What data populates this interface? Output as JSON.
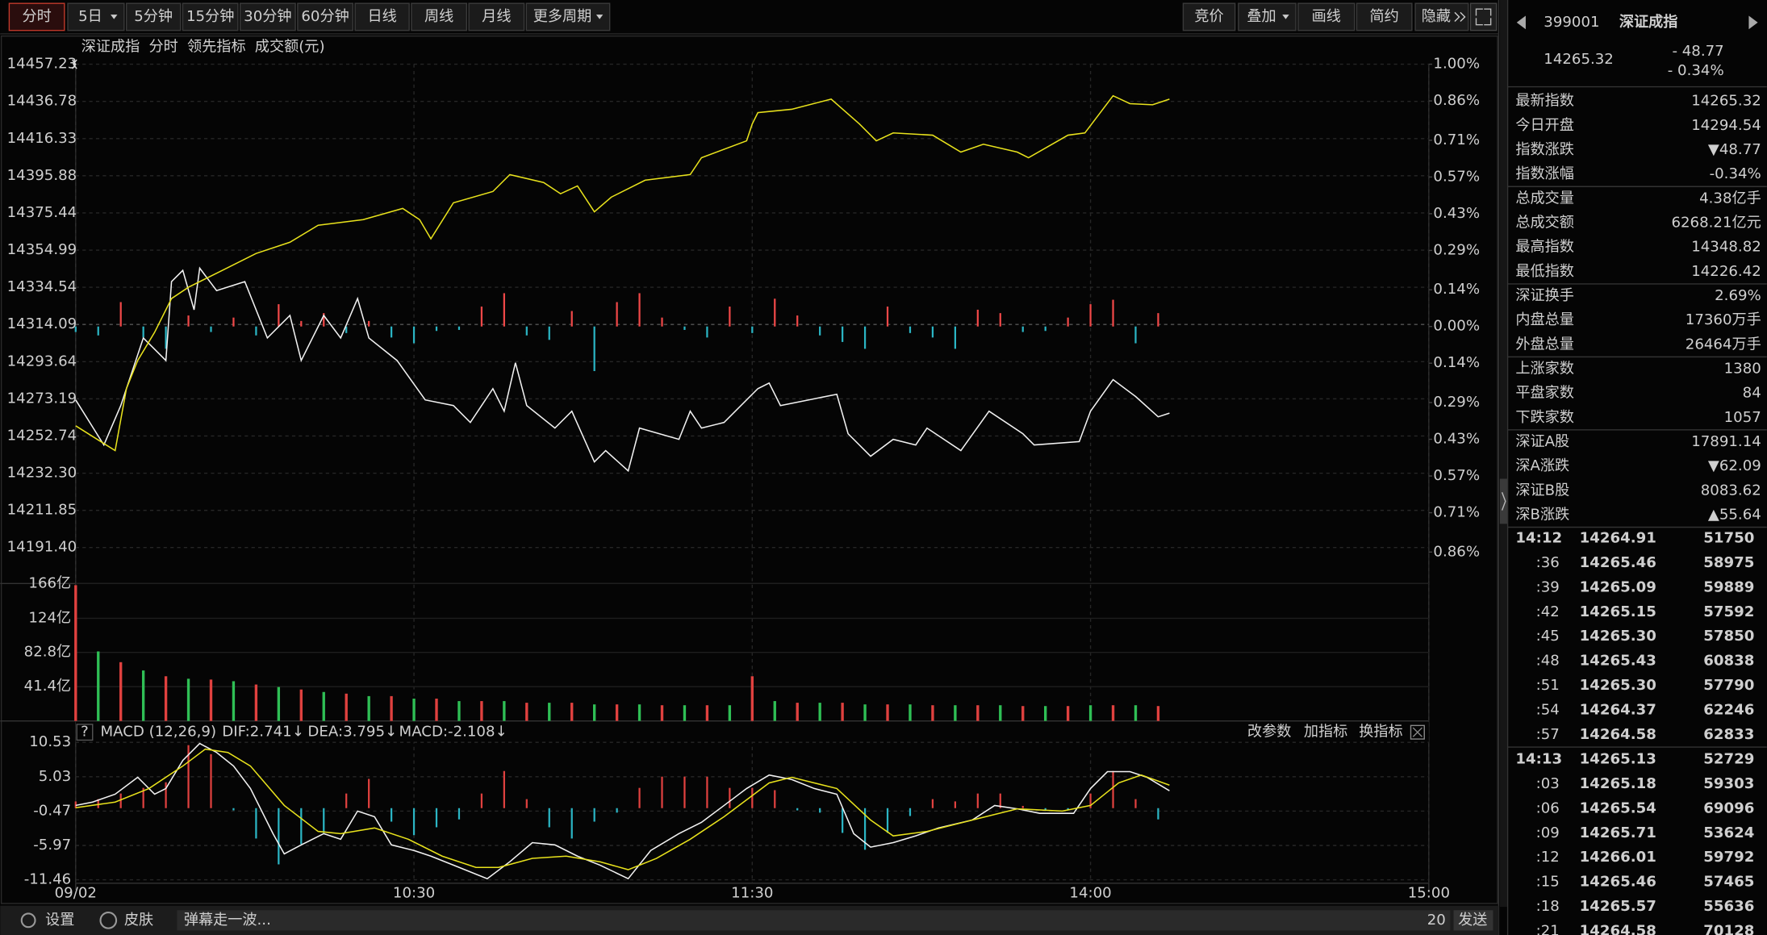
{
  "toolbar": {
    "periods": [
      "分时",
      "5日",
      "5分钟",
      "15分钟",
      "30分钟",
      "60分钟",
      "日线",
      "周线",
      "月线",
      "更多周期"
    ],
    "tools": [
      "竞价",
      "叠加",
      "画线",
      "简约",
      "隐藏"
    ]
  },
  "chart_data": [
    {
      "type": "line",
      "title": "深证成指",
      "xlim": [
        0,
        240
      ],
      "ylim": [
        14171.6,
        14457.23
      ],
      "yticks": [
        14457.23,
        14436.78,
        14416.33,
        14395.88,
        14375.44,
        14354.99,
        14334.54,
        14314.09,
        14293.64,
        14273.19,
        14252.74,
        {
          "value": 14232.3,
          "label": "14232.30"
        },
        14211.85,
        {
          "value": 14191.4,
          "label": "14191.40"
        }
      ],
      "y2lim": [
        -0.98,
        1.0
      ],
      "y2ticks": [
        {
          "value": 1.0,
          "label": "1.00%"
        },
        {
          "value": 0.86,
          "label": "0.86%"
        },
        {
          "value": 0.71,
          "label": "0.71%"
        },
        {
          "value": 0.57,
          "label": "0.57%"
        },
        {
          "value": 0.43,
          "label": "0.43%"
        },
        {
          "value": 0.29,
          "label": "0.29%"
        },
        {
          "value": 0.14,
          "label": "0.14%"
        },
        {
          "value": 0,
          "label": "0.00%"
        },
        {
          "value": -0.14,
          "label": "0.14%"
        },
        {
          "value": -0.29,
          "label": "0.29%"
        },
        {
          "value": -0.43,
          "label": "0.43%"
        },
        {
          "value": -0.57,
          "label": "0.57%"
        },
        {
          "value": -0.71,
          "label": "0.71%"
        },
        {
          "value": -0.86,
          "label": "0.86%"
        }
      ],
      "up_color": "#f04848",
      "down_color": "#2bb5c4",
      "grid": true,
      "series": [
        {
          "name": "分时",
          "color": "#f2f2f2",
          "x": [
            0,
            5,
            8,
            12,
            16,
            17,
            19,
            21,
            22,
            25,
            30,
            34,
            38,
            40,
            44,
            47,
            50,
            52,
            57,
            62,
            67,
            70,
            74,
            76,
            78,
            80,
            85,
            88,
            92,
            94,
            98,
            100,
            107,
            109,
            111,
            115,
            121,
            123,
            125,
            130,
            135,
            137,
            141,
            145,
            149,
            151,
            157,
            162,
            168,
            170,
            178,
            180,
            184,
            188,
            192,
            194
          ],
          "values": [
            14272.59,
            14247.81,
            14269.49,
            14306.67,
            14294.28,
            14337.65,
            14343.84,
            14322.16,
            14345.08,
            14332.69,
            14337.65,
            14306.67,
            14319.06,
            14294.28,
            14319.06,
            14306.67,
            14328.35,
            14306.67,
            14294.28,
            14272.59,
            14269.49,
            14260.2,
            14278.79,
            14266.39,
            14293.04,
            14269.49,
            14257.1,
            14266.39,
            14238.51,
            14244.71,
            14233.55,
            14257.1,
            14250.9,
            14266.39,
            14257.1,
            14260.2,
            14278.79,
            14281.88,
            14269.49,
            14272.59,
            14275.69,
            14254.0,
            14241.61,
            14250.9,
            14247.81,
            14257.1,
            14244.71,
            14266.39,
            14254.0,
            14247.81,
            14249.66,
            14266.39,
            14283.74,
            14274.45,
            14263.29,
            14265.32
          ]
        },
        {
          "name": "领先指标",
          "color": "#e8e21c",
          "x": [
            0,
            7,
            9,
            11,
            14,
            17,
            20,
            26,
            32,
            38,
            43,
            51,
            58,
            61,
            63,
            67,
            74,
            77,
            83,
            86,
            89,
            92,
            95,
            101,
            109,
            111,
            119,
            120,
            121,
            127,
            134,
            139,
            142,
            145,
            152,
            157,
            161,
            167,
            169,
            176,
            179,
            184,
            187,
            191,
            194
          ],
          "values": [
            14258.34,
            14244.71,
            14278.79,
            14294.28,
            14309.77,
            14328.35,
            14334.55,
            14343.84,
            14353.14,
            14359.33,
            14368.63,
            14371.73,
            14377.92,
            14371.73,
            14361.19,
            14381.02,
            14387.22,
            14396.51,
            14392.17,
            14385.98,
            14390.31,
            14376.06,
            14384.12,
            14393.41,
            14396.51,
            14405.8,
            14415.1,
            14424.39,
            14430.59,
            14432.45,
            14438.02,
            14424.39,
            14415.1,
            14419.43,
            14418.2,
            14408.9,
            14413.24,
            14408.9,
            14405.8,
            14418.2,
            14419.43,
            14439.88,
            14435.54,
            14434.92,
            14438.02
          ]
        }
      ],
      "bars": {
        "axis": "y2",
        "x": [
          0,
          4,
          8,
          12,
          16,
          20,
          24,
          28,
          32,
          36,
          40,
          44,
          48,
          52,
          56,
          60,
          64,
          68,
          72,
          76,
          80,
          84,
          88,
          92,
          96,
          100,
          104,
          108,
          112,
          116,
          120,
          124,
          128,
          132,
          136,
          140,
          144,
          148,
          152,
          156,
          160,
          164,
          168,
          172,
          176,
          180,
          184,
          188,
          192
        ],
        "values": [
          -0.021,
          -0.034,
          0.093,
          -0.042,
          -0.085,
          0.042,
          -0.021,
          0.034,
          -0.034,
          0.085,
          0.021,
          0.051,
          -0.025,
          0.021,
          -0.042,
          -0.064,
          -0.017,
          -0.013,
          0.076,
          0.127,
          -0.034,
          -0.051,
          0.059,
          -0.17,
          0.093,
          0.127,
          0.034,
          -0.013,
          -0.042,
          0.076,
          -0.025,
          0.106,
          0.042,
          -0.034,
          -0.059,
          -0.085,
          0.076,
          -0.025,
          -0.042,
          -0.085,
          0.064,
          0.051,
          -0.021,
          -0.017,
          0.034,
          0.085,
          0.102,
          -0.064,
          0.051
        ]
      }
    },
    {
      "type": "bar",
      "title": "成交额(元)",
      "xlim": [
        0,
        240
      ],
      "ylim": [
        0,
        166
      ],
      "yticks": [
        {
          "value": 166,
          "label": "166亿"
        },
        {
          "value": 124,
          "label": "124亿"
        },
        {
          "value": 82.8,
          "label": "82.8亿"
        },
        {
          "value": 41.4,
          "label": "41.4亿"
        }
      ],
      "colors": [
        "#e0413f",
        "#2fbf55"
      ],
      "x": [
        0,
        4,
        8,
        12,
        16,
        20,
        24,
        28,
        32,
        36,
        40,
        44,
        48,
        52,
        56,
        60,
        64,
        68,
        72,
        76,
        80,
        84,
        88,
        92,
        96,
        100,
        104,
        108,
        112,
        116,
        120,
        124,
        128,
        132,
        136,
        140,
        144,
        148,
        152,
        156,
        160,
        164,
        168,
        172,
        176,
        180,
        184,
        188,
        192
      ],
      "values": [
        164,
        84,
        71,
        61,
        54,
        51,
        50,
        48,
        44,
        41,
        38,
        35,
        33,
        30,
        30,
        27,
        27,
        24,
        24,
        24,
        22,
        22,
        22,
        20,
        20,
        20,
        19,
        19,
        19,
        19,
        54,
        24,
        22,
        22,
        22,
        20,
        20,
        20,
        19,
        19,
        19,
        19,
        18,
        18,
        18,
        19,
        19,
        19,
        18
      ]
    },
    {
      "type": "line",
      "title": "MACD (12,26,9)",
      "help": "?",
      "tools": [
        "改参数",
        "加指标",
        "换指标"
      ],
      "xlim": [
        0,
        240
      ],
      "xticks": [
        {
          "value": 0,
          "label": "09/02"
        },
        {
          "value": 60,
          "label": "10:30"
        },
        {
          "value": 120,
          "label": "11:30"
        },
        {
          "value": 180,
          "label": "14:00"
        },
        {
          "value": 240,
          "label": "15:00"
        }
      ],
      "ylim": [
        -13.09,
        12.51
      ],
      "yticks": [
        10.53,
        5.03,
        -0.47,
        -5.97,
        -11.46
      ],
      "up_color": "#e0413f",
      "down_color": "#2bb5c4",
      "series": [
        {
          "name": "DIF:2.741↓",
          "color": "#f2f2f2",
          "x": [
            0,
            3,
            7,
            11,
            14,
            16,
            19,
            22,
            25,
            28,
            31,
            35,
            37,
            40,
            44,
            47,
            50,
            53,
            56,
            60,
            63,
            67,
            73,
            77,
            81,
            85,
            89,
            93,
            98,
            102,
            107,
            111,
            115,
            119,
            123,
            127,
            131,
            135,
            138,
            141,
            145,
            149,
            153,
            159,
            163,
            167,
            171,
            177,
            180,
            183,
            187,
            190,
            194
          ],
          "values": [
            0.43,
            0.97,
            2.23,
            4.94,
            2.23,
            3.14,
            7.64,
            10.35,
            8.91,
            6.74,
            3.14,
            -4.08,
            -7.32,
            -5.88,
            -4.08,
            -4.98,
            -0.47,
            -1.37,
            -5.88,
            -6.78,
            -7.68,
            -9.12,
            -11.29,
            -8.58,
            -5.52,
            -5.88,
            -7.68,
            -9.12,
            -11.29,
            -6.78,
            -4.08,
            -2.27,
            0.43,
            3.14,
            5.3,
            4.58,
            3.14,
            2.23,
            -4.08,
            -6.24,
            -5.52,
            -4.44,
            -3.17,
            -1.91,
            0.43,
            -0.11,
            -0.83,
            -0.83,
            3.14,
            5.84,
            5.84,
            4.94,
            2.78
          ]
        },
        {
          "name": "DEA:3.795↓",
          "color": "#e8e21c",
          "x": [
            0,
            7,
            13,
            19,
            23,
            27,
            31,
            37,
            43,
            47,
            53,
            59,
            65,
            71,
            75,
            81,
            87,
            93,
            98,
            103,
            109,
            115,
            123,
            127,
            135,
            141,
            145,
            151,
            159,
            167,
            175,
            180,
            185,
            189,
            194
          ],
          "values": [
            0.07,
            0.97,
            3.14,
            6.74,
            9.45,
            8.91,
            6.74,
            0.43,
            -3.72,
            -4.08,
            -3.17,
            -4.98,
            -7.68,
            -9.49,
            -9.49,
            -8.04,
            -7.68,
            -8.58,
            -9.85,
            -8.04,
            -4.98,
            -1.37,
            4.04,
            4.94,
            3.14,
            -1.91,
            -4.44,
            -3.72,
            -1.91,
            -0.11,
            -0.47,
            0.43,
            4.04,
            5.3,
            3.68
          ]
        }
      ],
      "bars": {
        "name": "MACD:-2.108↓",
        "color": "#3fd15c",
        "x": [
          0,
          4,
          8,
          12,
          16,
          20,
          24,
          28,
          32,
          36,
          40,
          44,
          48,
          52,
          56,
          60,
          64,
          68,
          72,
          76,
          80,
          84,
          88,
          92,
          96,
          100,
          104,
          108,
          112,
          116,
          120,
          124,
          128,
          132,
          136,
          140,
          144,
          148,
          152,
          156,
          160,
          164,
          168,
          172,
          176,
          180,
          184,
          188,
          192
        ],
        "values": [
          1.08,
          1.44,
          2.34,
          3.24,
          4.14,
          10.08,
          8.64,
          -0.36,
          -4.86,
          -9.0,
          -5.76,
          -3.96,
          2.34,
          4.68,
          -2.16,
          -4.32,
          -3.06,
          -1.8,
          2.34,
          5.94,
          1.44,
          -3.06,
          -4.86,
          -2.16,
          -0.72,
          3.24,
          5.04,
          5.04,
          5.04,
          3.24,
          3.24,
          2.88,
          -0.36,
          -0.72,
          -3.96,
          -6.66,
          -3.96,
          -1.26,
          1.44,
          1.08,
          2.34,
          2.34,
          0.36,
          -0.36,
          -0.36,
          2.34,
          5.94,
          1.44,
          -1.8
        ]
      }
    }
  ],
  "quote": {
    "code": "399001",
    "name": "深证成指",
    "price": "14265.32",
    "change": "- 48.77",
    "change_pct": "- 0.34%",
    "stats": [
      [
        {
          "label": "最新指数",
          "value": "14265.32",
          "color": "#3fd15c"
        },
        {
          "label": "今日开盘",
          "value": "14294.54",
          "color": "#3fd15c"
        },
        {
          "label": "指数涨跌",
          "value": "▼48.77",
          "color": "#3fd15c"
        },
        {
          "label": "指数涨幅",
          "value": "-0.34%",
          "color": "#3fd15c"
        }
      ],
      [
        {
          "label": "总成交量",
          "value": "4.38亿手",
          "color": "#f2f2f2"
        },
        {
          "label": "总成交额",
          "value": "6268.21亿元",
          "color": "#2fd3e8"
        },
        {
          "label": "最高指数",
          "value": "14348.82",
          "color": "#f04848"
        },
        {
          "label": "最低指数",
          "value": "14226.42",
          "color": "#3fd15c"
        }
      ],
      [
        {
          "label": "深证换手",
          "value": "2.69%",
          "color": "#f2f2f2"
        },
        {
          "label": "内盘总量",
          "value": "17360万手",
          "color": "#3fd15c"
        },
        {
          "label": "外盘总量",
          "value": "26464万手",
          "color": "#f04848"
        }
      ],
      [
        {
          "label": "上涨家数",
          "value": "1380",
          "color": "#f04848"
        },
        {
          "label": "平盘家数",
          "value": "84",
          "color": "#f2f2f2"
        },
        {
          "label": "下跌家数",
          "value": "1057",
          "color": "#3fd15c"
        }
      ],
      [
        {
          "label": "深证A股",
          "value": "17891.14",
          "color": "#3fd15c"
        },
        {
          "label": "深A涨跌",
          "value": "▼62.09",
          "color": "#3fd15c"
        },
        {
          "label": "深证B股",
          "value": "8083.62",
          "color": "#f04848"
        },
        {
          "label": "深B涨跌",
          "value": "▲55.64",
          "color": "#f04848"
        }
      ]
    ],
    "ticks": [
      {
        "time": "14:12",
        "price": "14264.91",
        "volume": "51750",
        "vc": "#3fd15c"
      },
      {
        "time": ":36",
        "price": "14265.46",
        "volume": "58975",
        "vc": "#f04848"
      },
      {
        "time": ":39",
        "price": "14265.09",
        "volume": "59889",
        "vc": "#3fd15c"
      },
      {
        "time": ":42",
        "price": "14265.15",
        "volume": "57592",
        "vc": "#f04848"
      },
      {
        "time": ":45",
        "price": "14265.30",
        "volume": "57850",
        "vc": "#f04848"
      },
      {
        "time": ":48",
        "price": "14265.43",
        "volume": "60838",
        "vc": "#f04848"
      },
      {
        "time": ":51",
        "price": "14265.30",
        "volume": "57790",
        "vc": "#3fd15c"
      },
      {
        "time": ":54",
        "price": "14264.37",
        "volume": "62246",
        "vc": "#f04848"
      },
      {
        "time": ":57",
        "price": "14264.58",
        "volume": "62833",
        "vc": "#f04848"
      },
      {
        "time": "14:13",
        "price": "14265.13",
        "volume": "52729",
        "vc": "#f04848"
      },
      {
        "time": ":03",
        "price": "14265.18",
        "volume": "59303",
        "vc": "#f04848"
      },
      {
        "time": ":06",
        "price": "14265.54",
        "volume": "69096",
        "vc": "#f04848"
      },
      {
        "time": ":09",
        "price": "14265.71",
        "volume": "53624",
        "vc": "#f04848"
      },
      {
        "time": ":12",
        "price": "14266.01",
        "volume": "59792",
        "vc": "#f04848"
      },
      {
        "time": ":15",
        "price": "14265.46",
        "volume": "57465",
        "vc": "#3fd15c"
      },
      {
        "time": ":18",
        "price": "14265.57",
        "volume": "55636",
        "vc": "#f04848"
      },
      {
        "time": ":21",
        "price": "14264.58",
        "volume": "70128",
        "vc": "#f04848"
      }
    ],
    "tick_price_color": "#3fd15c"
  },
  "footer": {
    "settings": "设置",
    "skin": "皮肤",
    "danmu": "弹幕走一波...",
    "count": "20",
    "send": "发送"
  }
}
